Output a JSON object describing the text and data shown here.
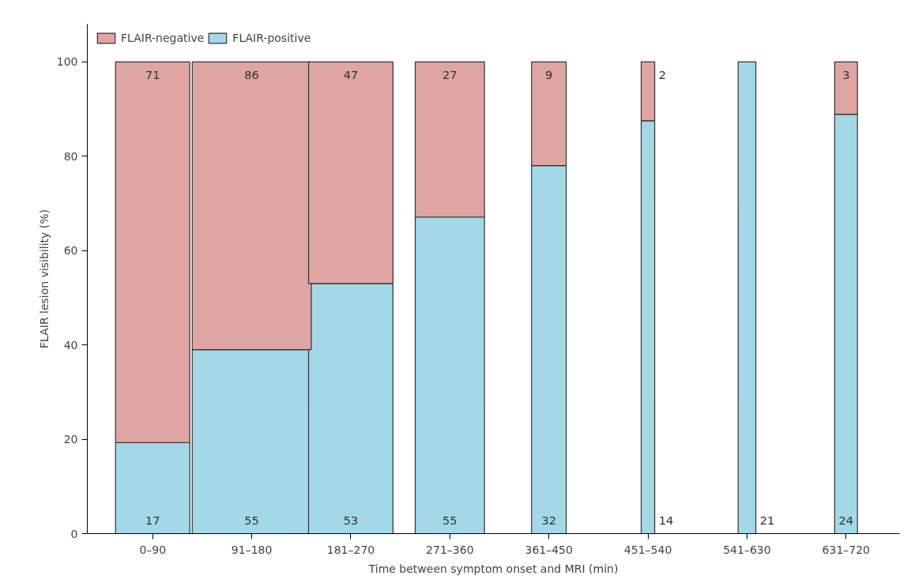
{
  "chart_data": {
    "type": "bar",
    "stacked": true,
    "xlabel": "Time between symptom onset and MRI (min)",
    "ylabel": "FLAIR lesion visibility (%)",
    "categories": [
      "0–90",
      "91–180",
      "181–270",
      "271–360",
      "361–450",
      "451–540",
      "541–630",
      "631–720"
    ],
    "series": [
      {
        "name": "FLAIR-positive",
        "color": "#a3d8e6",
        "values": [
          19.3,
          39.0,
          53.0,
          67.1,
          78.0,
          87.5,
          100,
          88.9
        ]
      },
      {
        "name": "FLAIR-negative",
        "color": "#dea5a2",
        "values": [
          80.7,
          61.0,
          47.0,
          32.9,
          22.0,
          12.5,
          0,
          11.1
        ]
      }
    ],
    "annotations": [
      {
        "text": "17",
        "x": "0–90",
        "y": 0
      },
      {
        "text": "71",
        "x": "0–90",
        "y": 100
      },
      {
        "text": "55",
        "x": "91–180",
        "y": 0
      },
      {
        "text": "86",
        "x": "91–180",
        "y": 100
      },
      {
        "text": "53",
        "x": "181–270",
        "y": 0
      },
      {
        "text": "47",
        "x": "181–270",
        "y": 100
      },
      {
        "text": "55",
        "x": "271–360",
        "y": 0
      },
      {
        "text": "27",
        "x": "271–360",
        "y": 100
      },
      {
        "text": "32",
        "x": "361–450",
        "y": 0
      },
      {
        "text": "9",
        "x": "361–450",
        "y": 100
      },
      {
        "text": "14",
        "x": "451–540",
        "y": 0
      },
      {
        "text": "2",
        "x": "451–540",
        "y": 100
      },
      {
        "text": "21",
        "x": "541–630",
        "y": 0
      },
      {
        "text": "24",
        "x": "631–720",
        "y": 0
      },
      {
        "text": "3",
        "x": "631–720",
        "y": 100
      }
    ],
    "ylim": [
      0,
      108
    ],
    "yticks": [
      0,
      20,
      40,
      60,
      80,
      100
    ],
    "grid": false,
    "legend": "top left"
  }
}
